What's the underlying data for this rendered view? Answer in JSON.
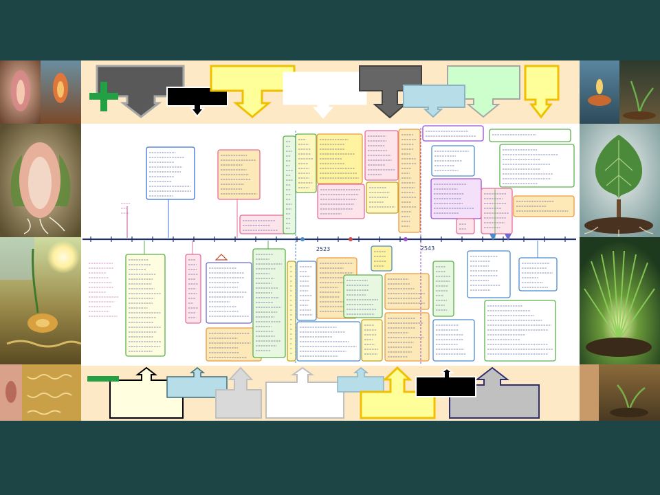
{
  "icons": {
    "add": "plus-icon",
    "remove": "minus-icon"
  },
  "colors": {
    "background": "#1e4545",
    "panel": "#fde9c6",
    "timeline_paper": "#ffffff",
    "timeline_axis": "#1f2f6a",
    "icon_green": "#22a043"
  },
  "timeline": {
    "year_labels": [
      "2523",
      "2543"
    ]
  },
  "callouts": {
    "top": [
      {
        "fill": "#595959",
        "border": "#a6a6a6"
      },
      {
        "fill": "#000000",
        "border": "#ffffff"
      },
      {
        "fill": "#ffff99",
        "border": "#f0c000"
      },
      {
        "fill": "#ffffff",
        "border": "#ffffff"
      },
      {
        "fill": "#666666",
        "border": "#404040"
      },
      {
        "fill": "#ccffcc",
        "border": "#a6a6a6"
      },
      {
        "fill": "#b7dde8",
        "border": "#8bb5c4"
      },
      {
        "fill": "#ffff99",
        "border": "#f0c000"
      }
    ],
    "bottom": [
      {
        "fill": "#ffffe0",
        "border": "#000000"
      },
      {
        "fill": "#b7dde8",
        "border": "#3d6f7a"
      },
      {
        "fill": "#d9d9d9",
        "border": "#bfbfbf"
      },
      {
        "fill": "#ffffff",
        "border": "#bfbfbf"
      },
      {
        "fill": "#b7dde8",
        "border": "#8bb5c4"
      },
      {
        "fill": "#ffff99",
        "border": "#f0c000"
      },
      {
        "fill": "#c0c0c0",
        "border": "#2e2e6e"
      },
      {
        "fill": "#000000",
        "border": "#ffffff"
      }
    ]
  }
}
